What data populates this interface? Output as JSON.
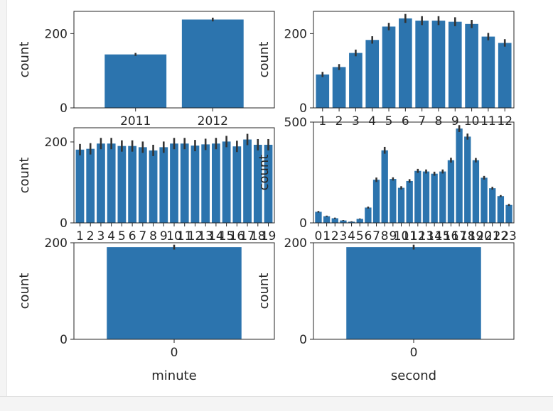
{
  "colors": {
    "bar": "#2c74ae",
    "errorbar": "#333333",
    "axis": "#262626",
    "page": "#ffffff",
    "margin_panel": "#f4f4f4"
  },
  "chart_data": [
    {
      "type": "bar",
      "categories": [
        "2011",
        "2012"
      ],
      "values": [
        144,
        238
      ],
      "errors": [
        4,
        5
      ],
      "xlabel": "",
      "ylabel": "count",
      "ylim": [
        0,
        260
      ],
      "yticks": [
        0,
        200
      ]
    },
    {
      "type": "bar",
      "categories": [
        "1",
        "2",
        "3",
        "4",
        "5",
        "6",
        "7",
        "8",
        "9",
        "10",
        "11",
        "12"
      ],
      "values": [
        90,
        110,
        148,
        183,
        219,
        241,
        235,
        235,
        232,
        226,
        192,
        175
      ],
      "errors": [
        7,
        8,
        9,
        10,
        10,
        12,
        12,
        12,
        12,
        11,
        10,
        10
      ],
      "xlabel": "",
      "ylabel": "count",
      "ylim": [
        0,
        260
      ],
      "yticks": [
        0,
        200
      ]
    },
    {
      "type": "bar",
      "categories": [
        "1",
        "2",
        "3",
        "4",
        "5",
        "6",
        "7",
        "8",
        "9",
        "10",
        "11",
        "12",
        "13",
        "14",
        "15",
        "16",
        "17",
        "18",
        "19"
      ],
      "values": [
        181,
        183,
        196,
        196,
        190,
        190,
        187,
        179,
        187,
        196,
        196,
        191,
        194,
        196,
        201,
        189,
        206,
        193,
        193
      ],
      "errors": [
        14,
        14,
        14,
        14,
        14,
        14,
        14,
        14,
        14,
        14,
        14,
        14,
        14,
        14,
        14,
        14,
        14,
        14,
        14
      ],
      "xlabel": "",
      "ylabel": "count",
      "ylim": [
        0,
        235
      ],
      "yticks": [
        0,
        200
      ]
    },
    {
      "type": "bar",
      "categories": [
        "0",
        "1",
        "2",
        "3",
        "4",
        "5",
        "6",
        "7",
        "8",
        "9",
        "10",
        "11",
        "12",
        "13",
        "14",
        "15",
        "16",
        "17",
        "18",
        "19",
        "20",
        "21",
        "22",
        "23"
      ],
      "values": [
        55,
        33,
        23,
        12,
        6,
        20,
        76,
        214,
        360,
        218,
        174,
        208,
        258,
        255,
        244,
        255,
        311,
        468,
        428,
        311,
        224,
        172,
        133,
        89
      ],
      "errors": [
        4,
        3,
        3,
        2,
        2,
        2,
        5,
        11,
        17,
        8,
        8,
        9,
        10,
        10,
        10,
        10,
        12,
        17,
        15,
        11,
        9,
        7,
        5,
        5
      ],
      "xlabel": "",
      "ylabel": "count",
      "ylim": [
        0,
        500
      ],
      "yticks": [
        0,
        500
      ]
    },
    {
      "type": "bar",
      "categories": [
        "0"
      ],
      "values": [
        191
      ],
      "errors": [
        5
      ],
      "xlabel": "minute",
      "ylabel": "count",
      "ylim": [
        0,
        200
      ],
      "yticks": [
        0,
        200
      ]
    },
    {
      "type": "bar",
      "categories": [
        "0"
      ],
      "values": [
        191
      ],
      "errors": [
        5
      ],
      "xlabel": "second",
      "ylabel": "count",
      "ylim": [
        0,
        200
      ],
      "yticks": [
        0,
        200
      ]
    }
  ]
}
